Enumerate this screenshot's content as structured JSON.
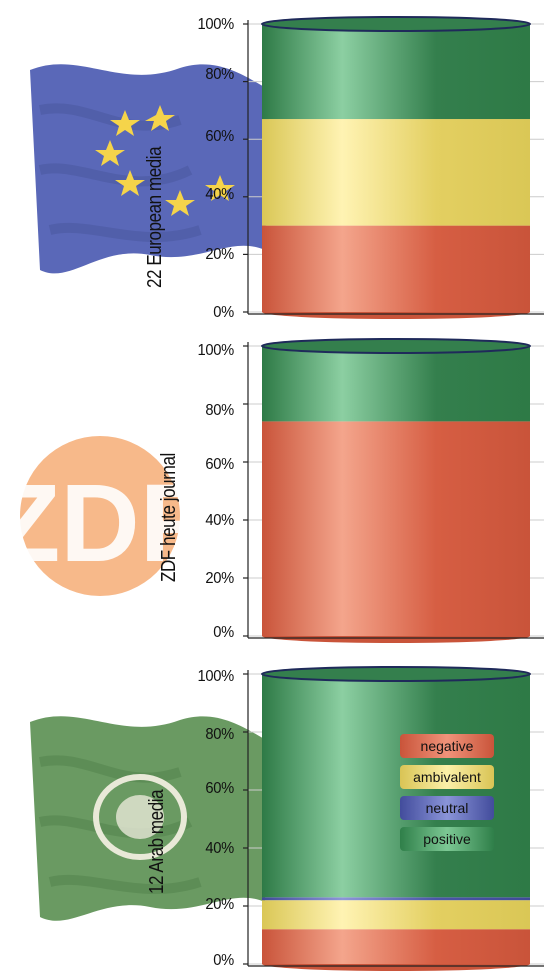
{
  "chart_data": [
    {
      "type": "bar",
      "ylabel": "22 European media",
      "yticks": [
        "100%",
        "80%",
        "60%",
        "40%",
        "20%",
        "0%"
      ],
      "ylim": [
        0,
        100
      ],
      "stacked": true,
      "series": [
        {
          "name": "negative",
          "value": 30
        },
        {
          "name": "ambivalent",
          "value": 37
        },
        {
          "name": "neutral",
          "value": 0
        },
        {
          "name": "positive",
          "value": 33
        }
      ]
    },
    {
      "type": "bar",
      "ylabel": "ZDF heute journal",
      "yticks": [
        "100%",
        "80%",
        "60%",
        "40%",
        "20%",
        "0%"
      ],
      "ylim": [
        0,
        100
      ],
      "stacked": true,
      "series": [
        {
          "name": "negative",
          "value": 74
        },
        {
          "name": "ambivalent",
          "value": 0
        },
        {
          "name": "neutral",
          "value": 0
        },
        {
          "name": "positive",
          "value": 26
        }
      ]
    },
    {
      "type": "bar",
      "ylabel": "12 Arab media",
      "yticks": [
        "100%",
        "80%",
        "60%",
        "40%",
        "20%",
        "0%"
      ],
      "ylim": [
        0,
        100
      ],
      "stacked": true,
      "series": [
        {
          "name": "negative",
          "value": 12
        },
        {
          "name": "ambivalent",
          "value": 10
        },
        {
          "name": "neutral",
          "value": 1
        },
        {
          "name": "positive",
          "value": 77
        }
      ]
    }
  ],
  "legend": {
    "items": [
      {
        "name": "negative",
        "color": "#e46a4c"
      },
      {
        "name": "ambivalent",
        "color": "#f3e07a"
      },
      {
        "name": "neutral",
        "color": "#5b66b8"
      },
      {
        "name": "positive",
        "color": "#3f9a5c"
      }
    ]
  },
  "colors": {
    "negative": "#e46a4c",
    "ambivalent": "#f3e07a",
    "neutral": "#5b66b8",
    "positive": "#3f9a5c"
  },
  "decorations": [
    "eu-flag-icon",
    "zdf-logo-icon",
    "arab-league-flag-icon"
  ]
}
